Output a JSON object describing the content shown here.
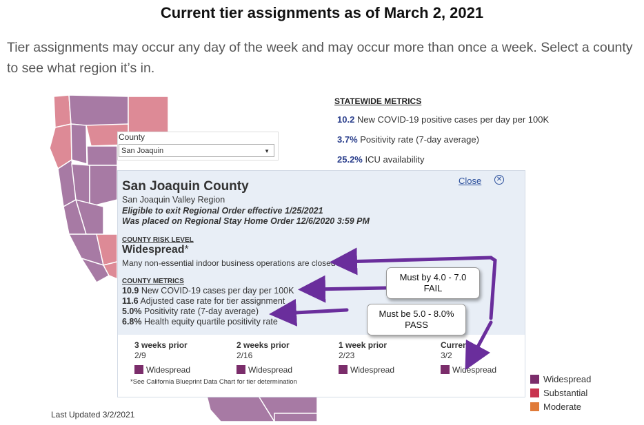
{
  "heading": "Current tier assignments as of March 2, 2021",
  "intro": "Tier assignments may occur any day of the week and may occur more than once a week. Select a county to see what region it’s in.",
  "statewide": {
    "title": "STATEWIDE METRICS",
    "metrics": [
      {
        "value": "10.2",
        "label": "New COVID-19 positive cases per day per 100K"
      },
      {
        "value": "3.7%",
        "label": "Positivity rate (7-day average)"
      },
      {
        "value": "25.2%",
        "label": "ICU availability"
      }
    ]
  },
  "county_selector": {
    "label": "County",
    "selected": "San Joaquin"
  },
  "popup": {
    "name": "San Joaquin County",
    "region": "San Joaquin Valley Region",
    "exit_line": "Eligible to exit Regional Order effective 1/25/2021",
    "placed_line": "Was placed on Regional Stay Home Order 12/6/2020 3:59 PM",
    "close_label": "Close",
    "risk_heading": "COUNTY RISK LEVEL",
    "risk_level": "Widespread",
    "risk_star": "*",
    "risk_desc": "Many non-essential indoor business operations are closed",
    "metrics_heading": "COUNTY METRICS",
    "metrics": [
      {
        "value": "10.9",
        "label": "New COVID-19 cases per day per 100K"
      },
      {
        "value": "11.6",
        "label": "Adjusted case rate for tier assignment"
      },
      {
        "value": "5.0%",
        "label": "Positivity rate (7-day average)"
      },
      {
        "value": "6.8%",
        "label": "Health equity quartile positivity rate"
      }
    ],
    "history": [
      {
        "label": "3 weeks prior",
        "date": "2/9",
        "tier": "Widespread"
      },
      {
        "label": "2 weeks prior",
        "date": "2/16",
        "tier": "Widespread"
      },
      {
        "label": "1 week prior",
        "date": "2/23",
        "tier": "Widespread"
      },
      {
        "label": "Current",
        "date": "3/2",
        "tier": "Widespread"
      }
    ],
    "note": "*See California Blueprint Data Chart for tier determination"
  },
  "callouts": {
    "fail": {
      "line1": "Must by 4.0 - 7.0",
      "line2": "FAIL"
    },
    "pass": {
      "line1": "Must be 5.0 - 8.0%",
      "line2": "PASS"
    }
  },
  "legend": [
    {
      "label": "Widespread",
      "color": "#7b2d6b"
    },
    {
      "label": "Substantial",
      "color": "#c8344f"
    },
    {
      "label": "Moderate",
      "color": "#e07b39"
    }
  ],
  "last_updated": "Last Updated 3/2/2021",
  "colors": {
    "widespread": "#7b2d6b",
    "map_purple": "#a77aa4",
    "map_pink": "#dd8a96",
    "arrow": "#6a2e9c"
  }
}
